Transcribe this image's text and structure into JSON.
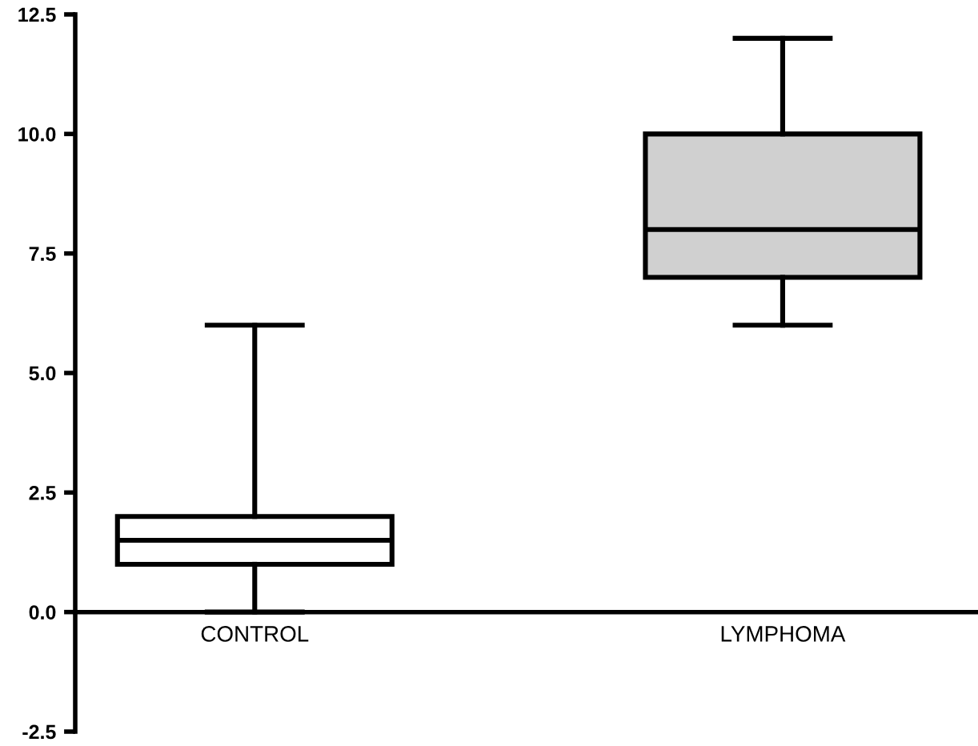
{
  "chart_data": {
    "type": "box",
    "categories": [
      "CONTROL",
      "LYMPHOMA"
    ],
    "boxes": [
      {
        "low": 0,
        "q1": 1,
        "median": 1.5,
        "q3": 2,
        "high": 6
      },
      {
        "low": 6,
        "q1": 7,
        "median": 8,
        "q3": 10,
        "high": 12
      }
    ],
    "colors": [
      "#ffffff",
      "#d0d0d0"
    ],
    "ylim": [
      -2.5,
      12.5
    ],
    "yticks": [
      {
        "value": -2.5,
        "label": "-2.5"
      },
      {
        "value": 0,
        "label": "0.0"
      },
      {
        "value": 2.5,
        "label": "2.5"
      },
      {
        "value": 5,
        "label": "5.0"
      },
      {
        "value": 7.5,
        "label": "7.5"
      },
      {
        "value": 10,
        "label": "10.0"
      },
      {
        "value": 12.5,
        "label": "12.5"
      }
    ],
    "grid": false
  }
}
